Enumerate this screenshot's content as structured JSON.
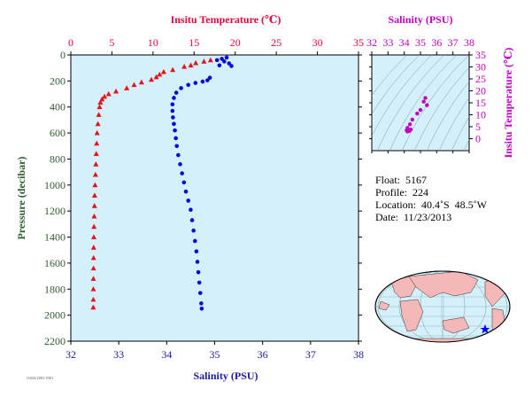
{
  "chart_data": [
    {
      "type": "scatter",
      "top_axis": {
        "label": "Insitu Temperature (℃)",
        "range": [
          0,
          35
        ],
        "ticks": [
          0,
          5,
          10,
          15,
          20,
          25,
          30,
          35
        ],
        "color": "#e8003a"
      },
      "bottom_axis": {
        "label": "Salinity (PSU)",
        "range": [
          32,
          38
        ],
        "ticks": [
          32,
          33,
          34,
          35,
          36,
          37,
          38
        ],
        "color": "#1a1aa6"
      },
      "y_axis": {
        "label": "Pressure (decibar)",
        "range": [
          0,
          2200
        ],
        "inverted": true,
        "ticks": [
          0,
          200,
          400,
          600,
          800,
          1000,
          1200,
          1400,
          1600,
          1800,
          2000,
          2200
        ],
        "color": "#2f5a2f"
      },
      "background": "#d4f0fa",
      "series": [
        {
          "marker": "triangle",
          "color": "#e8101a",
          "axis": "top",
          "points": [
            [
              17.0,
              40
            ],
            [
              16.2,
              50
            ],
            [
              15.2,
              62
            ],
            [
              14.6,
              80
            ],
            [
              13.8,
              90
            ],
            [
              12.4,
              115
            ],
            [
              11.3,
              130
            ],
            [
              10.8,
              150
            ],
            [
              10.4,
              170
            ],
            [
              9.8,
              190
            ],
            [
              8.6,
              210
            ],
            [
              7.7,
              230
            ],
            [
              6.8,
              255
            ],
            [
              5.5,
              280
            ],
            [
              4.6,
              300
            ],
            [
              4.1,
              320
            ],
            [
              3.8,
              340
            ],
            [
              3.6,
              365
            ],
            [
              3.5,
              400
            ],
            [
              3.4,
              460
            ],
            [
              3.3,
              530
            ],
            [
              3.2,
              600
            ],
            [
              3.15,
              680
            ],
            [
              3.1,
              760
            ],
            [
              3.05,
              840
            ],
            [
              3.0,
              920
            ],
            [
              2.95,
              1000
            ],
            [
              2.9,
              1080
            ],
            [
              2.88,
              1160
            ],
            [
              2.85,
              1240
            ],
            [
              2.82,
              1320
            ],
            [
              2.8,
              1400
            ],
            [
              2.78,
              1480
            ],
            [
              2.77,
              1560
            ],
            [
              2.76,
              1640
            ],
            [
              2.75,
              1720
            ],
            [
              2.74,
              1800
            ],
            [
              2.74,
              1880
            ],
            [
              2.73,
              1940
            ]
          ]
        },
        {
          "marker": "circle",
          "color": "#0a0ae0",
          "axis": "bottom",
          "points": [
            [
              35.25,
              20
            ],
            [
              35.15,
              30
            ],
            [
              35.05,
              40
            ],
            [
              35.2,
              50
            ],
            [
              35.3,
              65
            ],
            [
              35.35,
              85
            ],
            [
              35.1,
              80
            ],
            [
              34.9,
              175
            ],
            [
              34.85,
              195
            ],
            [
              34.75,
              205
            ],
            [
              34.6,
              215
            ],
            [
              34.45,
              230
            ],
            [
              34.3,
              255
            ],
            [
              34.2,
              290
            ],
            [
              34.15,
              330
            ],
            [
              34.12,
              380
            ],
            [
              34.12,
              430
            ],
            [
              34.13,
              480
            ],
            [
              34.15,
              530
            ],
            [
              34.17,
              580
            ],
            [
              34.19,
              640
            ],
            [
              34.21,
              700
            ],
            [
              34.24,
              770
            ],
            [
              34.28,
              840
            ],
            [
              34.32,
              910
            ],
            [
              34.36,
              980
            ],
            [
              34.4,
              1050
            ],
            [
              34.45,
              1120
            ],
            [
              34.5,
              1190
            ],
            [
              34.53,
              1270
            ],
            [
              34.56,
              1350
            ],
            [
              34.59,
              1430
            ],
            [
              34.62,
              1510
            ],
            [
              34.64,
              1590
            ],
            [
              34.66,
              1670
            ],
            [
              34.68,
              1750
            ],
            [
              34.7,
              1830
            ],
            [
              34.72,
              1910
            ],
            [
              34.73,
              1950
            ]
          ]
        }
      ]
    },
    {
      "type": "scatter",
      "title": "Salinity (PSU)",
      "ylabel": "Insitu Temperature (℃)",
      "xlim": [
        32,
        38
      ],
      "ylim": [
        -5,
        35
      ],
      "xticks": [
        32,
        33,
        34,
        35,
        36,
        37,
        38
      ],
      "yticks": [
        0,
        5,
        10,
        15,
        20,
        25,
        30,
        35
      ],
      "color": "#c000c0",
      "points": [
        [
          35.3,
          17
        ],
        [
          35.2,
          15.5
        ],
        [
          35.4,
          14
        ],
        [
          35.0,
          12
        ],
        [
          34.8,
          10.5
        ],
        [
          34.5,
          8
        ],
        [
          34.35,
          6
        ],
        [
          34.2,
          4.5
        ],
        [
          34.15,
          3.5
        ],
        [
          34.2,
          3
        ],
        [
          34.3,
          3.2
        ],
        [
          34.4,
          3.8
        ]
      ]
    }
  ],
  "info": {
    "float": "Float:  5167",
    "profile": "Profile:  224",
    "location": "Location:  40.4˚S  48.5˚W",
    "date": "Date:  11/23/2013"
  },
  "footer_note": "f3044/2003 9301"
}
